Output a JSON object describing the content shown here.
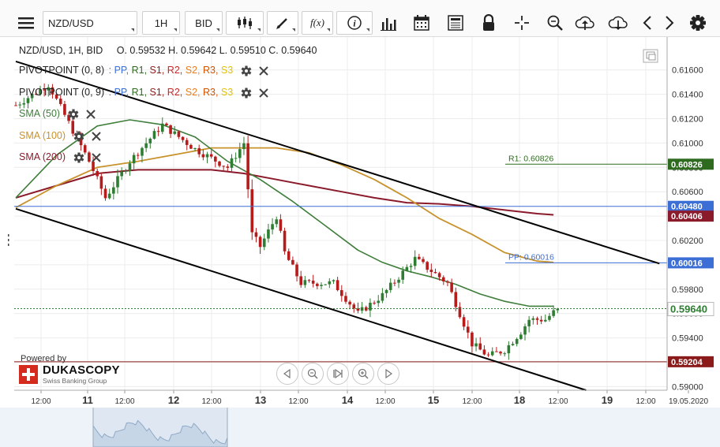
{
  "toolbar": {
    "instrument": "NZD/USD",
    "timeframe": "1H",
    "side": "BID",
    "icons": [
      "menu-icon",
      "candlestick-icon",
      "draw-icon",
      "function-icon",
      "info-icon",
      "volume-bars-icon",
      "calendar-icon",
      "report-icon",
      "lock-icon",
      "crosshair-icon",
      "zoom-icon",
      "upload-icon",
      "download-icon",
      "prev-icon",
      "next-icon",
      "gear-icon"
    ]
  },
  "legend": {
    "title": "NZD/USD, 1H, BID",
    "ohlc": "O. 0.59532 H. 0.59642 L. 0.59510 C. 0.59640",
    "pivot1": {
      "name": "PIVOTPOINT (0, 8)",
      "sep": ":",
      "levels": [
        "PP,",
        "R1,",
        "S1,",
        "R2,",
        "S2,",
        "R3,",
        "S3"
      ]
    },
    "pivot2": {
      "name": "PIVOTPOINT (0, 9)",
      "sep": ":",
      "levels": [
        "PP,",
        "R1,",
        "S1,",
        "R2,",
        "S2,",
        "R3,",
        "S3"
      ]
    },
    "sma50": "SMA (50)",
    "sma100": "SMA (100)",
    "sma200": "SMA (200)"
  },
  "branding": {
    "powered": "Powered by",
    "name": "DUKASCOPY",
    "tagline": "Swiss Banking Group"
  },
  "colors": {
    "candle_up": "#2e7d32",
    "candle_down": "#b71c1c",
    "sma50": "#3e7d3a",
    "sma100": "#c8922c",
    "sma200": "#8b1a2b",
    "trendline": "#000000",
    "pp": "#3b6fd6",
    "r1": "#2e6b1f",
    "s1": "#8b1a1a",
    "r2": "#c62828",
    "s2": "#e67e22",
    "r3": "#d35400",
    "s3": "#e5c100",
    "price": "#2e7d32"
  },
  "chart_data": {
    "type": "candlestick",
    "instrument": "NZD/USD",
    "timeframe": "1H",
    "ylim": [
      0.5897,
      0.6187
    ],
    "y_ticks": [
      0.59,
      0.592,
      0.594,
      0.596,
      0.598,
      0.6,
      0.602,
      0.604,
      0.606,
      0.608,
      0.61,
      0.612,
      0.614,
      0.616
    ],
    "x_ticks": [
      "12:00",
      "11",
      "12:00",
      "12",
      "12:00",
      "13",
      "12:00",
      "14",
      "12:00",
      "15",
      "12:00",
      "18",
      "12:00",
      "19",
      "12:00",
      "19.05.2020"
    ],
    "key_candles": [
      {
        "t": 0,
        "price": 0.6131
      },
      {
        "t": 8,
        "price": 0.6148
      },
      {
        "t": 18,
        "price": 0.6085
      },
      {
        "t": 22,
        "price": 0.6055
      },
      {
        "t": 28,
        "price": 0.6085
      },
      {
        "t": 36,
        "price": 0.6115
      },
      {
        "t": 44,
        "price": 0.6095
      },
      {
        "t": 52,
        "price": 0.608
      },
      {
        "t": 56,
        "price": 0.61
      },
      {
        "t": 58,
        "price": 0.6025
      },
      {
        "t": 60,
        "price": 0.6015
      },
      {
        "t": 64,
        "price": 0.604
      },
      {
        "t": 66,
        "price": 0.601
      },
      {
        "t": 70,
        "price": 0.5985
      },
      {
        "t": 78,
        "price": 0.5985
      },
      {
        "t": 84,
        "price": 0.596
      },
      {
        "t": 90,
        "price": 0.5975
      },
      {
        "t": 94,
        "price": 0.599
      },
      {
        "t": 98,
        "price": 0.6005
      },
      {
        "t": 102,
        "price": 0.5995
      },
      {
        "t": 106,
        "price": 0.5985
      },
      {
        "t": 109,
        "price": 0.596
      },
      {
        "t": 112,
        "price": 0.5935
      },
      {
        "t": 116,
        "price": 0.5925
      },
      {
        "t": 120,
        "price": 0.593
      },
      {
        "t": 124,
        "price": 0.5945
      },
      {
        "t": 126,
        "price": 0.5955
      },
      {
        "t": 130,
        "price": 0.5955
      },
      {
        "t": 133,
        "price": 0.5964
      }
    ],
    "sma50": [
      [
        0,
        0.6055
      ],
      [
        10,
        0.609
      ],
      [
        20,
        0.6114
      ],
      [
        28,
        0.6119
      ],
      [
        36,
        0.6115
      ],
      [
        44,
        0.6105
      ],
      [
        52,
        0.6085
      ],
      [
        60,
        0.607
      ],
      [
        68,
        0.6052
      ],
      [
        76,
        0.6032
      ],
      [
        84,
        0.6012
      ],
      [
        90,
        0.6002
      ],
      [
        96,
        0.5995
      ],
      [
        102,
        0.599
      ],
      [
        108,
        0.5984
      ],
      [
        114,
        0.5976
      ],
      [
        120,
        0.597
      ],
      [
        126,
        0.5966
      ],
      [
        132,
        0.5966
      ]
    ],
    "sma100": [
      [
        0,
        0.6047
      ],
      [
        10,
        0.6065
      ],
      [
        20,
        0.608
      ],
      [
        30,
        0.6085
      ],
      [
        40,
        0.6091
      ],
      [
        48,
        0.6096
      ],
      [
        56,
        0.6096
      ],
      [
        64,
        0.6096
      ],
      [
        72,
        0.6092
      ],
      [
        80,
        0.6082
      ],
      [
        88,
        0.607
      ],
      [
        96,
        0.6055
      ],
      [
        104,
        0.6038
      ],
      [
        112,
        0.6025
      ],
      [
        120,
        0.601
      ],
      [
        128,
        0.6003
      ],
      [
        132,
        0.6002
      ]
    ],
    "sma200": [
      [
        0,
        0.6055
      ],
      [
        10,
        0.6065
      ],
      [
        20,
        0.6075
      ],
      [
        30,
        0.6078
      ],
      [
        40,
        0.6078
      ],
      [
        48,
        0.6078
      ],
      [
        56,
        0.6075
      ],
      [
        64,
        0.607
      ],
      [
        72,
        0.6065
      ],
      [
        80,
        0.606
      ],
      [
        88,
        0.6055
      ],
      [
        96,
        0.6051
      ],
      [
        104,
        0.605
      ],
      [
        112,
        0.6048
      ],
      [
        120,
        0.6045
      ],
      [
        128,
        0.6042
      ],
      [
        132,
        0.6041
      ]
    ],
    "channel_upper": [
      [
        0,
        0.6167
      ],
      [
        158,
        0.6001
      ]
    ],
    "channel_lower": [
      [
        0,
        0.6046
      ],
      [
        140,
        0.5897
      ]
    ],
    "levels": [
      {
        "name": "R1",
        "label": "R1: 0.60826",
        "value": 0.60826,
        "tag": "0.60826",
        "color": "#2e6b1f"
      },
      {
        "name": "PP",
        "label": "PP: 0.60016",
        "value": 0.60016,
        "tag": "0.60016",
        "color": "#3b6fd6"
      },
      {
        "name": "PP",
        "label": "",
        "value": 0.6048,
        "tag": "0.60480",
        "color": "#3b6fd6"
      },
      {
        "name": "S1",
        "label": "",
        "value": 0.59204,
        "tag": "0.59204",
        "color": "#8b1a1a"
      }
    ],
    "sma200_last": {
      "value": 0.60406,
      "tag": "0.60406"
    },
    "last_price": {
      "value": 0.5964,
      "tag": "0.59640"
    }
  }
}
